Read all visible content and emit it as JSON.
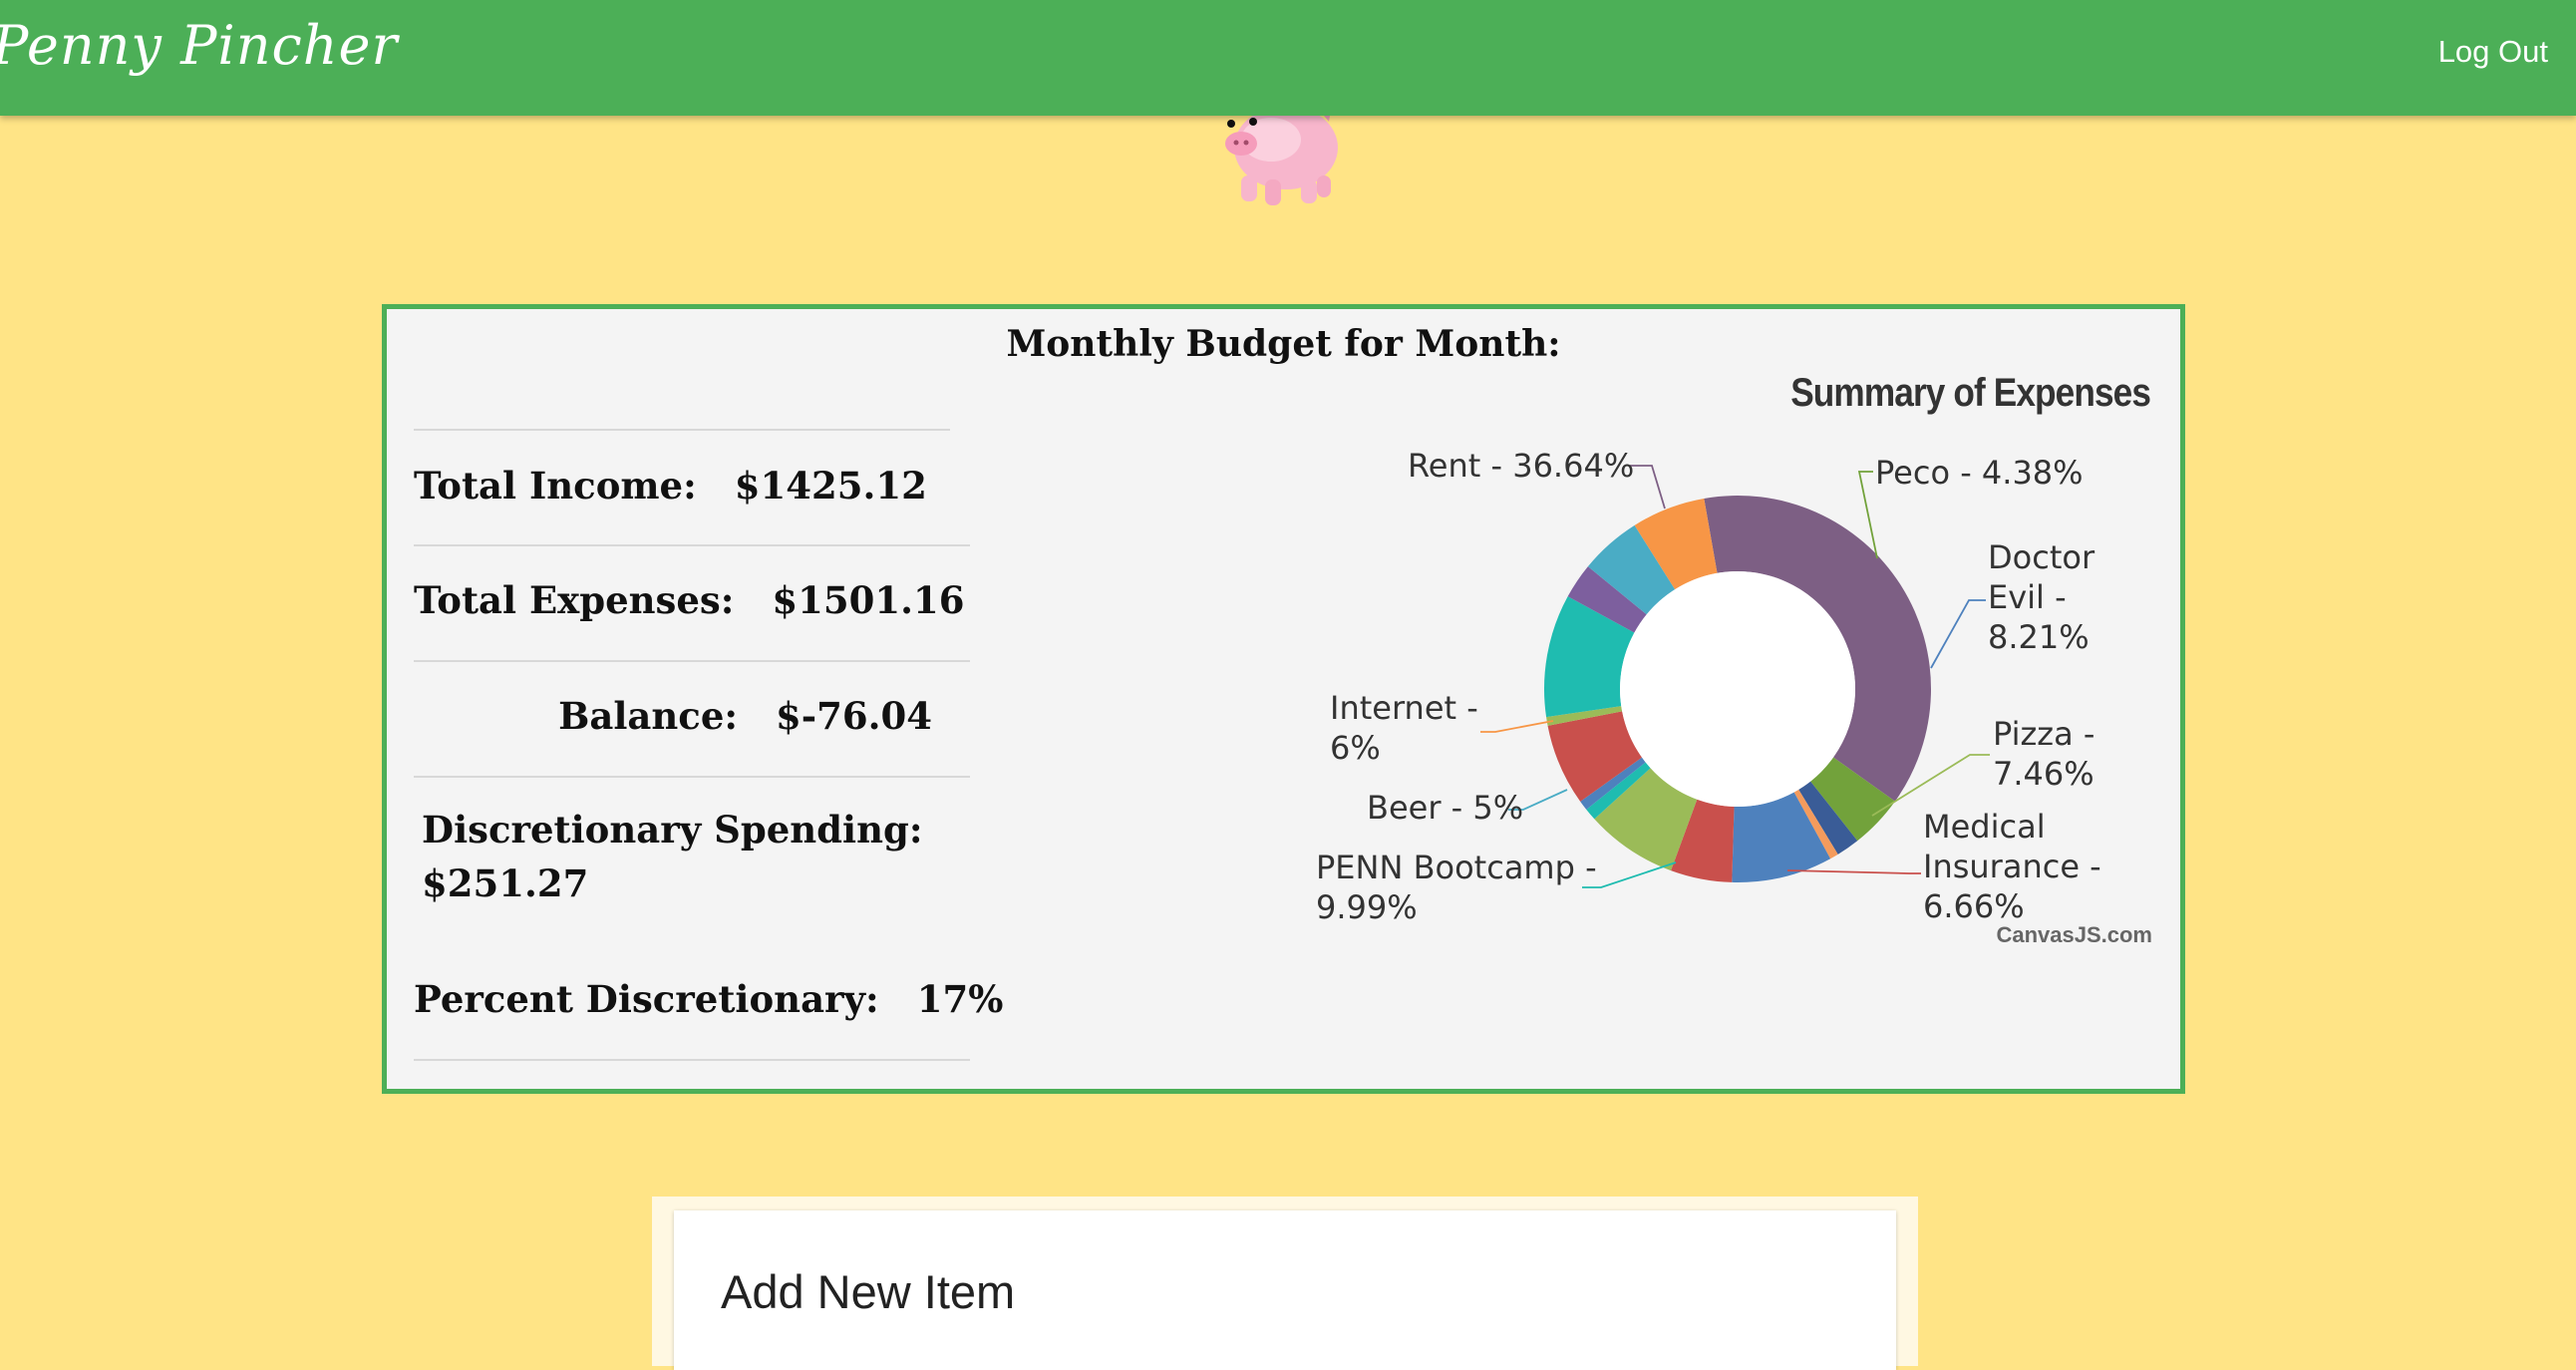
{
  "app": {
    "brand": "Penny Pincher",
    "logout_label": "Log Out"
  },
  "budget": {
    "title": "Monthly Budget for Month:",
    "total_income_label": "Total Income:",
    "total_income_value": "$1425.12",
    "total_expenses_label": "Total Expenses:",
    "total_expenses_value": "$1501.16",
    "balance_label": "Balance:",
    "balance_value": "$-76.04",
    "discretionary_label": "Discretionary Spending:",
    "discretionary_value": "$251.27",
    "percent_disc_label": "Percent Discretionary:",
    "percent_disc_value": "17%"
  },
  "chart_data": {
    "type": "pie",
    "title": "Summary of Expenses",
    "credit": "CanvasJS.com",
    "slices": [
      {
        "label": "Rent - 36.64%",
        "value": 36.64,
        "color": "#7d5f84"
      },
      {
        "label": "Peco - 4.38%",
        "value": 4.38,
        "color": "#72a23b"
      },
      {
        "label": "",
        "value": 1.9,
        "color": "#3a5c97"
      },
      {
        "label": "",
        "value": 0.7,
        "color": "#f49b5d"
      },
      {
        "label": "Doctor Evil - 8.21%",
        "value": 8.21,
        "color": "#4e81bd"
      },
      {
        "label": "",
        "value": 5.0,
        "color": "#c9504c"
      },
      {
        "label": "Pizza - 7.46%",
        "value": 7.46,
        "color": "#9bbb58"
      },
      {
        "label": "",
        "value": 1.0,
        "color": "#1fbcb0"
      },
      {
        "label": "",
        "value": 0.8,
        "color": "#4e81bd"
      },
      {
        "label": "Medical Insurance - 6.66%",
        "value": 6.66,
        "color": "#c9504c"
      },
      {
        "label": "",
        "value": 0.7,
        "color": "#9bbb58"
      },
      {
        "label": "PENN Bootcamp - 9.99%",
        "value": 9.99,
        "color": "#1fbcb0"
      },
      {
        "label": "",
        "value": 2.9,
        "color": "#7d5f9e"
      },
      {
        "label": "Beer - 5%",
        "value": 5.0,
        "color": "#4aacc5"
      },
      {
        "label": "Internet - 6%",
        "value": 6.0,
        "color": "#f79646"
      }
    ],
    "labels": {
      "rent": "Rent - 36.64%",
      "peco": "Peco - 4.38%",
      "doctor_1": "Doctor",
      "doctor_2": "Evil -",
      "doctor_3": "8.21%",
      "pizza_1": "Pizza -",
      "pizza_2": "7.46%",
      "medical_1": "Medical",
      "medical_2": "Insurance -",
      "medical_3": "6.66%",
      "penn_1": "PENN Bootcamp -",
      "penn_2": "9.99%",
      "beer": "Beer - 5%",
      "internet_1": "Internet -",
      "internet_2": "6%"
    }
  },
  "add_item": {
    "title": "Add New Item"
  }
}
